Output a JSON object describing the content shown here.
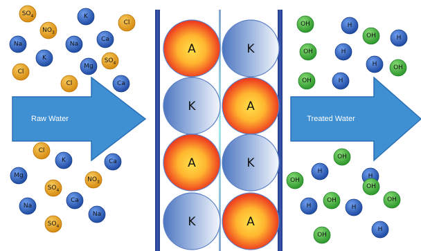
{
  "colors": {
    "cation_dark": "#1f4fa6",
    "cation_light": "#4f86d8",
    "anion_dark": "#d98c12",
    "anion_light": "#f3b840",
    "hydroxide_dark": "#2f9a2f",
    "hydroxide_light": "#62c955",
    "arrow_fill": "#3f8fd3",
    "column_wall": "#2a3f8f",
    "bead_red": "#e8301c",
    "bead_yellow": "#ffd23a",
    "bead_blue": "#5b82c6"
  },
  "arrows": {
    "left_label": "Raw Water",
    "right_label": "Treated Water"
  },
  "column": {
    "beads": [
      {
        "label": "A",
        "type": "anion"
      },
      {
        "label": "K",
        "type": "cation"
      },
      {
        "label": "K",
        "type": "cation"
      },
      {
        "label": "A",
        "type": "anion"
      },
      {
        "label": "A",
        "type": "anion"
      },
      {
        "label": "K",
        "type": "cation"
      },
      {
        "label": "K",
        "type": "cation"
      },
      {
        "label": "A",
        "type": "anion"
      }
    ]
  },
  "raw_ions": [
    {
      "label": "SO4",
      "type": "anion"
    },
    {
      "label": "NO3",
      "type": "anion"
    },
    {
      "label": "K",
      "type": "cation"
    },
    {
      "label": "Cl",
      "type": "anion"
    },
    {
      "label": "Na",
      "type": "cation"
    },
    {
      "label": "Na",
      "type": "cation"
    },
    {
      "label": "Ca",
      "type": "cation"
    },
    {
      "label": "K",
      "type": "cation"
    },
    {
      "label": "Mg",
      "type": "cation"
    },
    {
      "label": "SO4",
      "type": "anion"
    },
    {
      "label": "Cl",
      "type": "anion"
    },
    {
      "label": "Cl",
      "type": "anion"
    },
    {
      "label": "Ca",
      "type": "cation"
    },
    {
      "label": "Cl",
      "type": "anion"
    },
    {
      "label": "K",
      "type": "cation"
    },
    {
      "label": "Ca",
      "type": "cation"
    },
    {
      "label": "Mg",
      "type": "cation"
    },
    {
      "label": "NO3",
      "type": "anion"
    },
    {
      "label": "SO4",
      "type": "anion"
    },
    {
      "label": "Ca",
      "type": "cation"
    },
    {
      "label": "Na",
      "type": "cation"
    },
    {
      "label": "Na",
      "type": "cation"
    },
    {
      "label": "SO4",
      "type": "anion"
    }
  ],
  "treated_ions": [
    {
      "label": "OH",
      "type": "hydroxide"
    },
    {
      "label": "H",
      "type": "cation"
    },
    {
      "label": "OH",
      "type": "hydroxide"
    },
    {
      "label": "H",
      "type": "cation"
    },
    {
      "label": "OH",
      "type": "hydroxide"
    },
    {
      "label": "H",
      "type": "cation"
    },
    {
      "label": "H",
      "type": "cation"
    },
    {
      "label": "OH",
      "type": "hydroxide"
    },
    {
      "label": "OH",
      "type": "hydroxide"
    },
    {
      "label": "H",
      "type": "cation"
    },
    {
      "label": "OH",
      "type": "hydroxide"
    },
    {
      "label": "OH",
      "type": "hydroxide"
    },
    {
      "label": "H",
      "type": "cation"
    },
    {
      "label": "H",
      "type": "cation"
    },
    {
      "label": "OH",
      "type": "hydroxide"
    },
    {
      "label": "OH",
      "type": "hydroxide"
    },
    {
      "label": "H",
      "type": "cation"
    },
    {
      "label": "H",
      "type": "cation"
    },
    {
      "label": "OH",
      "type": "hydroxide"
    },
    {
      "label": "H",
      "type": "cation"
    },
    {
      "label": "OH",
      "type": "hydroxide"
    }
  ]
}
